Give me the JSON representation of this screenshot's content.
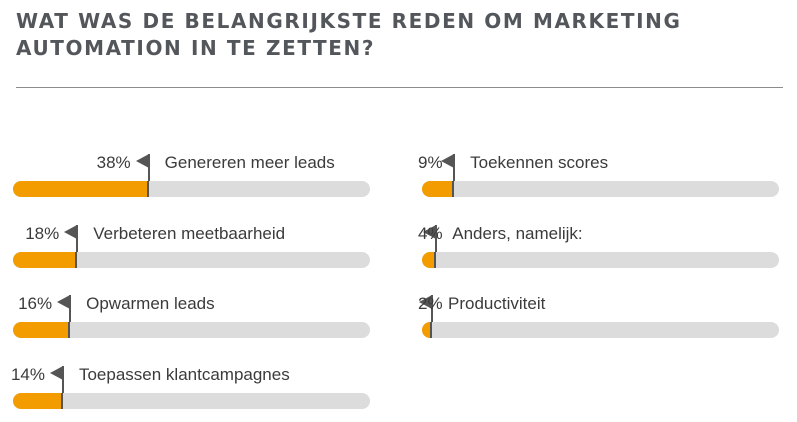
{
  "title": "WAT WAS DE BELANGRIJKSTE REDEN OM MARKETING AUTOMATION IN TE ZETTEN?",
  "colors": {
    "fill": "#f39c00",
    "track": "#dcdcdc",
    "marker": "#555555",
    "title": "#53575b"
  },
  "chart_data": {
    "type": "bar",
    "orientation": "horizontal",
    "title": "WAT WAS DE BELANGRIJKSTE REDEN OM MARKETING AUTOMATION IN TE ZETTEN?",
    "xlim": [
      0,
      100
    ],
    "grid": false,
    "legend": "none",
    "bars": [
      {
        "label": "Genereren meer leads",
        "value": 38,
        "value_label": "38%"
      },
      {
        "label": "Verbeteren meetbaarheid",
        "value": 18,
        "value_label": "18%"
      },
      {
        "label": "Opwarmen leads",
        "value": 16,
        "value_label": "16%"
      },
      {
        "label": "Toepassen klantcampagnes",
        "value": 14,
        "value_label": "14%"
      },
      {
        "label": "Toekennen scores",
        "value": 9,
        "value_label": "9%"
      },
      {
        "label": "Anders, namelijk:",
        "value": 4,
        "value_label": "4%"
      },
      {
        "label": "Productiviteit",
        "value": 2,
        "value_label": "2%"
      }
    ]
  }
}
